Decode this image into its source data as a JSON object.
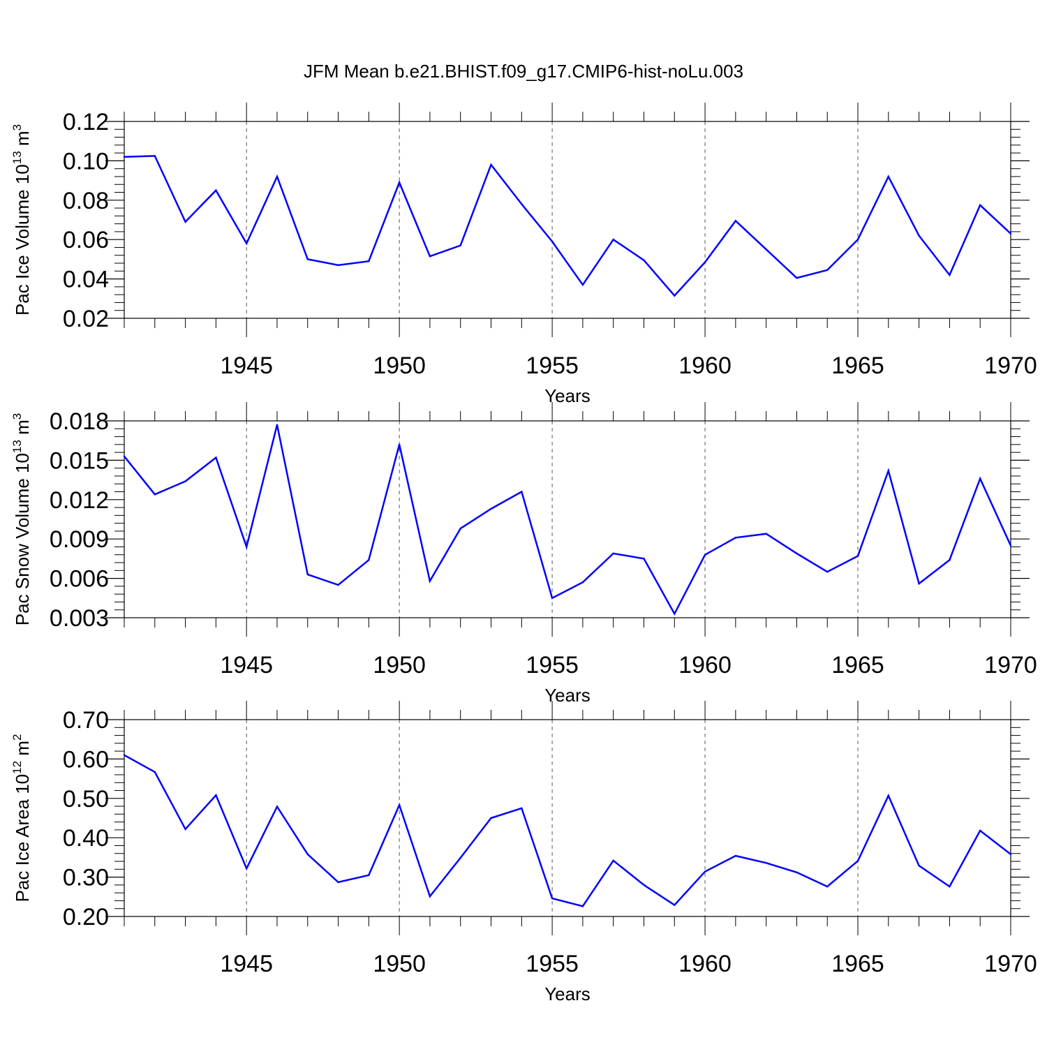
{
  "title": "JFM Mean b.e21.BHIST.f09_g17.CMIP6-hist-noLu.003",
  "colors": {
    "line": "#0000ff",
    "axis": "#000000",
    "grid": "#555555"
  },
  "chart_data": [
    {
      "type": "line",
      "xlabel": "Years",
      "ylabel": {
        "text": "Pac Ice Volume 10",
        "exponent": "13",
        "unit": " m",
        "unit_exponent": "3"
      },
      "xlim": [
        1941,
        1970
      ],
      "ylim": [
        0.02,
        0.12
      ],
      "yticks": [
        "0.02",
        "0.04",
        "0.06",
        "0.08",
        "0.10",
        "0.12"
      ],
      "xticks": [
        "1945",
        "1950",
        "1955",
        "1960",
        "1965",
        "1970"
      ],
      "grid": "vertical dashed at labeled years",
      "x": [
        1941,
        1942,
        1943,
        1944,
        1945,
        1946,
        1947,
        1948,
        1949,
        1950,
        1951,
        1952,
        1953,
        1954,
        1955,
        1956,
        1957,
        1958,
        1959,
        1960,
        1961,
        1962,
        1963,
        1964,
        1965,
        1966,
        1967,
        1968,
        1969,
        1970
      ],
      "values": [
        0.102,
        0.1025,
        0.069,
        0.085,
        0.058,
        0.092,
        0.05,
        0.047,
        0.049,
        0.089,
        0.0515,
        0.057,
        0.098,
        0.078,
        0.059,
        0.037,
        0.06,
        0.0495,
        0.0315,
        0.0485,
        0.0695,
        0.055,
        0.0405,
        0.0445,
        0.06,
        0.092,
        0.062,
        0.042,
        0.0775,
        0.063
      ]
    },
    {
      "type": "line",
      "xlabel": "Years",
      "ylabel": {
        "text": "Pac Snow Volume 10",
        "exponent": "13",
        "unit": " m",
        "unit_exponent": "3"
      },
      "xlim": [
        1941,
        1970
      ],
      "ylim": [
        0.003,
        0.018
      ],
      "yticks": [
        "0.003",
        "0.006",
        "0.009",
        "0.012",
        "0.015",
        "0.018"
      ],
      "xticks": [
        "1945",
        "1950",
        "1955",
        "1960",
        "1965",
        "1970"
      ],
      "grid": "vertical dashed at labeled years",
      "x": [
        1941,
        1942,
        1943,
        1944,
        1945,
        1946,
        1947,
        1948,
        1949,
        1950,
        1951,
        1952,
        1953,
        1954,
        1955,
        1956,
        1957,
        1958,
        1959,
        1960,
        1961,
        1962,
        1963,
        1964,
        1965,
        1966,
        1967,
        1968,
        1969,
        1970
      ],
      "values": [
        0.0153,
        0.0124,
        0.0134,
        0.0152,
        0.0084,
        0.0177,
        0.0063,
        0.0055,
        0.0074,
        0.0162,
        0.0058,
        0.0098,
        0.0113,
        0.0126,
        0.0045,
        0.0057,
        0.0079,
        0.0075,
        0.0033,
        0.0078,
        0.0091,
        0.0094,
        0.0079,
        0.0065,
        0.0077,
        0.0142,
        0.0056,
        0.0074,
        0.0136,
        0.0085
      ]
    },
    {
      "type": "line",
      "xlabel": "Years",
      "ylabel": {
        "text": "Pac Ice Area 10",
        "exponent": "12",
        "unit": " m",
        "unit_exponent": "2"
      },
      "xlim": [
        1941,
        1970
      ],
      "ylim": [
        0.2,
        0.7
      ],
      "yticks": [
        "0.20",
        "0.30",
        "0.40",
        "0.50",
        "0.60",
        "0.70"
      ],
      "xticks": [
        "1945",
        "1950",
        "1955",
        "1960",
        "1965",
        "1970"
      ],
      "grid": "vertical dashed at labeled years",
      "x": [
        1941,
        1942,
        1943,
        1944,
        1945,
        1946,
        1947,
        1948,
        1949,
        1950,
        1951,
        1952,
        1953,
        1954,
        1955,
        1956,
        1957,
        1958,
        1959,
        1960,
        1961,
        1962,
        1963,
        1964,
        1965,
        1966,
        1967,
        1968,
        1969,
        1970
      ],
      "values": [
        0.61,
        0.567,
        0.422,
        0.508,
        0.322,
        0.479,
        0.358,
        0.287,
        0.305,
        0.483,
        0.251,
        0.349,
        0.45,
        0.475,
        0.246,
        0.226,
        0.342,
        0.28,
        0.229,
        0.314,
        0.354,
        0.336,
        0.312,
        0.276,
        0.341,
        0.507,
        0.329,
        0.276,
        0.418,
        0.358
      ]
    }
  ]
}
